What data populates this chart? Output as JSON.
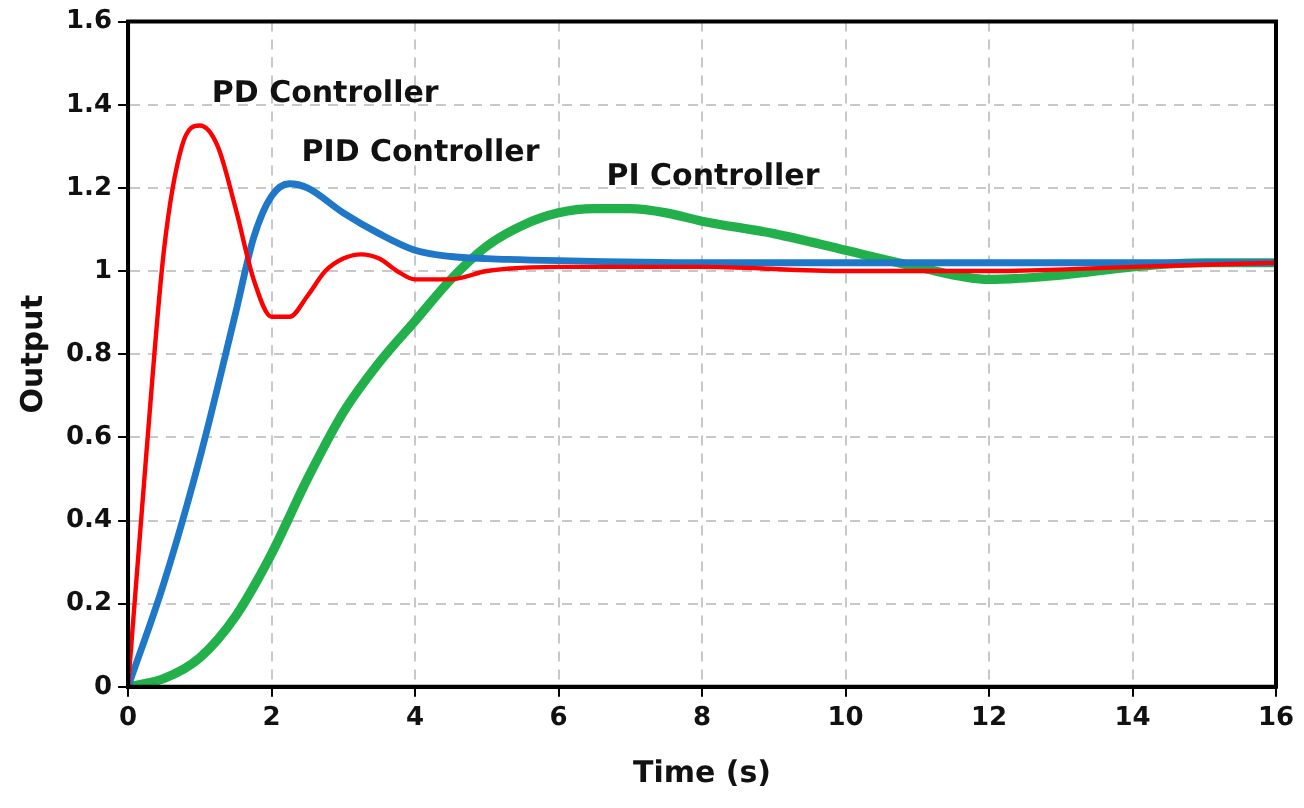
{
  "chart_data": {
    "type": "line",
    "xlabel": "Time (s)",
    "ylabel": "Output",
    "xlim": [
      0,
      16
    ],
    "xticks": [
      0,
      2,
      4,
      6,
      8,
      10,
      12,
      14,
      16
    ],
    "ylim": [
      0,
      1.6
    ],
    "yticks": [
      0,
      0.2,
      0.4,
      0.6,
      0.8,
      1,
      1.2,
      1.4,
      1.6
    ],
    "grid": true,
    "legend": false,
    "marker": "none",
    "line_style": "solid",
    "series": [
      {
        "name": "PD Controller",
        "color": "#ff0000",
        "x": [
          0,
          0.25,
          0.5,
          0.75,
          1,
          1.25,
          1.5,
          1.75,
          2,
          2.25,
          2.5,
          2.75,
          3,
          3.25,
          3.5,
          3.75,
          4,
          4.5,
          5,
          6,
          8,
          10,
          12,
          14,
          16
        ],
        "values": [
          0,
          0.55,
          1.05,
          1.3,
          1.35,
          1.3,
          1.15,
          0.98,
          0.89,
          0.89,
          0.94,
          1,
          1.03,
          1.04,
          1.03,
          1,
          0.98,
          0.98,
          1,
          1.01,
          1.01,
          1,
          1,
          1.01,
          1.02
        ]
      },
      {
        "name": "PID Controller",
        "color": "#1f77c8",
        "x": [
          0,
          0.5,
          1,
          1.5,
          1.75,
          2,
          2.25,
          2.5,
          3,
          3.5,
          4,
          4.5,
          5,
          6,
          8,
          10,
          12,
          14,
          16
        ],
        "values": [
          0,
          0.25,
          0.55,
          0.9,
          1.08,
          1.18,
          1.21,
          1.2,
          1.14,
          1.09,
          1.05,
          1.035,
          1.03,
          1.025,
          1.02,
          1.02,
          1.02,
          1.02,
          1.02
        ]
      },
      {
        "name": "PI Controller",
        "color": "#22b04b",
        "x": [
          0,
          0.5,
          1,
          1.5,
          2,
          2.5,
          3,
          3.5,
          4,
          4.5,
          5,
          5.5,
          6,
          6.5,
          7,
          7.5,
          8,
          9,
          10,
          11,
          12,
          13,
          14,
          15,
          16
        ],
        "values": [
          0,
          0.02,
          0.07,
          0.17,
          0.32,
          0.5,
          0.66,
          0.78,
          0.88,
          0.98,
          1.06,
          1.11,
          1.14,
          1.15,
          1.15,
          1.14,
          1.12,
          1.09,
          1.05,
          1.01,
          0.98,
          0.99,
          1.01,
          1.02,
          1.02
        ]
      }
    ]
  }
}
